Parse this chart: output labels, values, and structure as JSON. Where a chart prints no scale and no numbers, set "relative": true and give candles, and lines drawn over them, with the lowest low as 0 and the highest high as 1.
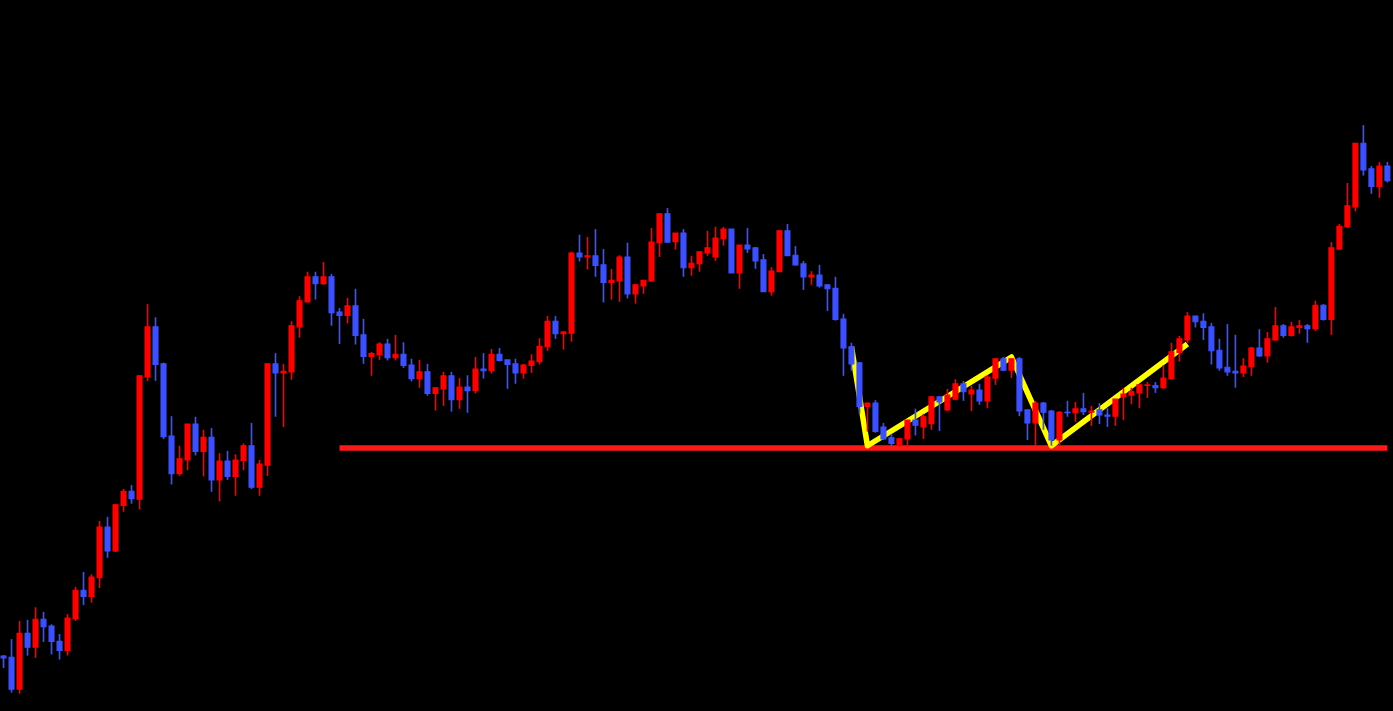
{
  "chart_data": {
    "type": "candlestick",
    "relative": true,
    "categories": [
      null,
      null,
      null,
      null,
      null,
      null,
      null,
      null,
      null,
      null,
      null,
      null,
      null,
      null,
      null,
      null,
      null,
      null,
      null,
      null,
      null,
      null,
      null,
      null,
      null,
      null,
      null,
      null,
      null,
      null,
      null,
      null,
      null,
      null,
      null,
      null,
      null,
      null,
      null,
      null,
      null,
      null,
      null,
      null,
      null,
      null,
      null,
      null,
      null,
      null,
      null,
      null,
      null,
      null,
      null,
      null,
      null,
      null,
      null,
      null,
      null,
      null,
      null,
      null,
      null,
      null,
      null,
      null,
      null,
      null,
      null,
      null,
      null,
      null,
      null,
      null,
      null,
      null,
      null,
      null,
      null,
      null,
      null,
      null,
      null,
      null,
      null,
      null,
      null,
      null,
      null,
      null,
      null,
      null,
      null,
      null,
      null,
      null,
      null,
      null,
      null,
      null,
      null,
      null,
      null,
      null,
      null,
      null,
      null,
      null,
      null,
      null,
      null,
      null,
      null,
      null,
      null,
      null,
      null,
      null,
      null,
      null,
      null,
      null,
      null,
      null,
      null,
      null,
      null,
      null,
      null,
      null,
      null,
      null,
      null,
      null,
      null,
      null,
      null,
      null,
      null,
      null,
      null,
      null,
      null,
      null,
      null,
      null,
      null,
      null,
      null,
      null,
      null,
      null,
      null,
      null,
      null,
      null,
      null,
      null,
      null,
      null,
      null,
      null,
      null,
      null,
      null,
      null,
      null,
      null,
      null,
      null,
      null,
      null
    ],
    "ohlc": [
      [
        0.066,
        0.068,
        0.045,
        0.063
      ],
      [
        0.064,
        0.096,
        0.002,
        0.008
      ],
      [
        0.008,
        0.128,
        0,
        0.106
      ],
      [
        0.106,
        0.13,
        0.067,
        0.082
      ],
      [
        0.082,
        0.152,
        0.063,
        0.131
      ],
      [
        0.131,
        0.144,
        0.091,
        0.118
      ],
      [
        0.119,
        0.122,
        0.069,
        0.092
      ],
      [
        0.092,
        0.105,
        0.06,
        0.076
      ],
      [
        0.076,
        0.14,
        0.067,
        0.133
      ],
      [
        0.132,
        0.188,
        0.128,
        0.182
      ],
      [
        0.182,
        0.214,
        0.156,
        0.171
      ],
      [
        0.171,
        0.21,
        0.16,
        0.205
      ],
      [
        0.204,
        0.304,
        0.186,
        0.293
      ],
      [
        0.293,
        0.311,
        0.239,
        0.251
      ],
      [
        0.251,
        0.334,
        0.249,
        0.332
      ],
      [
        0.331,
        0.36,
        0.32,
        0.356
      ],
      [
        0.356,
        0.367,
        0.334,
        0.343
      ],
      [
        0.342,
        0.559,
        0.324,
        0.559
      ],
      [
        0.557,
        0.685,
        0.55,
        0.645
      ],
      [
        0.645,
        0.662,
        0.55,
        0.579
      ],
      [
        0.58,
        0.582,
        0.448,
        0.452
      ],
      [
        0.453,
        0.488,
        0.368,
        0.387
      ],
      [
        0.387,
        0.436,
        0.383,
        0.413
      ],
      [
        0.411,
        0.474,
        0.393,
        0.474
      ],
      [
        0.474,
        0.487,
        0.419,
        0.426
      ],
      [
        0.426,
        0.464,
        0.382,
        0.451
      ],
      [
        0.451,
        0.467,
        0.355,
        0.376
      ],
      [
        0.376,
        0.423,
        0.338,
        0.409
      ],
      [
        0.409,
        0.427,
        0.376,
        0.382
      ],
      [
        0.382,
        0.421,
        0.348,
        0.411
      ],
      [
        0.41,
        0.44,
        0.393,
        0.436
      ],
      [
        0.436,
        0.476,
        0.36,
        0.363
      ],
      [
        0.363,
        0.411,
        0.348,
        0.404
      ],
      [
        0.402,
        0.58,
        0.383,
        0.58
      ],
      [
        0.58,
        0.599,
        0.487,
        0.564
      ],
      [
        0.564,
        0.58,
        0.469,
        0.567
      ],
      [
        0.566,
        0.655,
        0.552,
        0.647
      ],
      [
        0.645,
        0.699,
        0.626,
        0.691
      ],
      [
        0.689,
        0.742,
        0.689,
        0.733
      ],
      [
        0.733,
        0.742,
        0.693,
        0.721
      ],
      [
        0.721,
        0.759,
        0.719,
        0.733
      ],
      [
        0.733,
        0.738,
        0.647,
        0.67
      ],
      [
        0.671,
        0.678,
        0.615,
        0.665
      ],
      [
        0.665,
        0.696,
        0.651,
        0.682
      ],
      [
        0.682,
        0.712,
        0.614,
        0.63
      ],
      [
        0.631,
        0.659,
        0.58,
        0.593
      ],
      [
        0.593,
        0.601,
        0.559,
        0.598
      ],
      [
        0.596,
        0.618,
        0.587,
        0.615
      ],
      [
        0.615,
        0.624,
        0.586,
        0.591
      ],
      [
        0.591,
        0.631,
        0.586,
        0.597
      ],
      [
        0.597,
        0.618,
        0.573,
        0.577
      ],
      [
        0.578,
        0.589,
        0.549,
        0.554
      ],
      [
        0.554,
        0.587,
        0.538,
        0.566
      ],
      [
        0.566,
        0.58,
        0.524,
        0.528
      ],
      [
        0.528,
        0.539,
        0.498,
        0.538
      ],
      [
        0.536,
        0.566,
        0.506,
        0.559
      ],
      [
        0.559,
        0.566,
        0.496,
        0.517
      ],
      [
        0.517,
        0.555,
        0.501,
        0.539
      ],
      [
        0.539,
        0.56,
        0.494,
        0.533
      ],
      [
        0.533,
        0.592,
        0.528,
        0.571
      ],
      [
        0.571,
        0.599,
        0.554,
        0.568
      ],
      [
        0.568,
        0.606,
        0.563,
        0.597
      ],
      [
        0.597,
        0.608,
        0.584,
        0.586
      ],
      [
        0.587,
        0.587,
        0.536,
        0.579
      ],
      [
        0.58,
        0.589,
        0.545,
        0.564
      ],
      [
        0.564,
        0.58,
        0.554,
        0.578
      ],
      [
        0.577,
        0.597,
        0.564,
        0.585
      ],
      [
        0.584,
        0.625,
        0.579,
        0.611
      ],
      [
        0.61,
        0.664,
        0.603,
        0.655
      ],
      [
        0.655,
        0.664,
        0.624,
        0.633
      ],
      [
        0.633,
        0.638,
        0.605,
        0.636
      ],
      [
        0.634,
        0.777,
        0.619,
        0.775
      ],
      [
        0.775,
        0.807,
        0.76,
        0.768
      ],
      [
        0.768,
        0.803,
        0.746,
        0.77
      ],
      [
        0.77,
        0.817,
        0.733,
        0.753
      ],
      [
        0.754,
        0.782,
        0.688,
        0.723
      ],
      [
        0.723,
        0.747,
        0.693,
        0.727
      ],
      [
        0.726,
        0.771,
        0.689,
        0.768
      ],
      [
        0.768,
        0.793,
        0.695,
        0.703
      ],
      [
        0.703,
        0.72,
        0.686,
        0.719
      ],
      [
        0.717,
        0.727,
        0.703,
        0.727
      ],
      [
        0.726,
        0.819,
        0.724,
        0.794
      ],
      [
        0.793,
        0.844,
        0.768,
        0.844
      ],
      [
        0.844,
        0.854,
        0.793,
        0.794
      ],
      [
        0.795,
        0.81,
        0.781,
        0.81
      ],
      [
        0.81,
        0.817,
        0.733,
        0.749
      ],
      [
        0.749,
        0.77,
        0.735,
        0.757
      ],
      [
        0.756,
        0.777,
        0.742,
        0.777
      ],
      [
        0.775,
        0.814,
        0.77,
        0.784
      ],
      [
        0.768,
        0.821,
        0.761,
        0.801
      ],
      [
        0.8,
        0.821,
        0.788,
        0.817
      ],
      [
        0.817,
        0.817,
        0.74,
        0.74
      ],
      [
        0.74,
        0.789,
        0.712,
        0.789
      ],
      [
        0.789,
        0.819,
        0.775,
        0.782
      ],
      [
        0.784,
        0.785,
        0.747,
        0.761
      ],
      [
        0.763,
        0.773,
        0.707,
        0.707
      ],
      [
        0.707,
        0.75,
        0.7,
        0.743
      ],
      [
        0.742,
        0.815,
        0.742,
        0.814
      ],
      [
        0.814,
        0.826,
        0.77,
        0.77
      ],
      [
        0.771,
        0.787,
        0.753,
        0.754
      ],
      [
        0.756,
        0.761,
        0.71,
        0.733
      ],
      [
        0.733,
        0.743,
        0.719,
        0.736
      ],
      [
        0.736,
        0.754,
        0.714,
        0.717
      ],
      [
        0.719,
        0.719,
        0.673,
        0.712
      ],
      [
        0.713,
        0.733,
        0.656,
        0.658
      ],
      [
        0.659,
        0.668,
        0.559,
        0.608
      ],
      [
        0.61,
        0.617,
        0.568,
        0.58
      ],
      [
        0.582,
        0.582,
        0.492,
        0.505
      ],
      [
        0.505,
        0.511,
        0.461,
        0.511
      ],
      [
        0.511,
        0.516,
        0.459,
        0.461
      ],
      [
        0.469,
        0.476,
        0.446,
        0.448
      ],
      [
        0.45,
        0.457,
        0.436,
        0.44
      ],
      [
        0.437,
        0.45,
        0.434,
        0.448
      ],
      [
        0.448,
        0.481,
        0.434,
        0.481
      ],
      [
        0.481,
        0.501,
        0.454,
        0.472
      ],
      [
        0.469,
        0.492,
        0.448,
        0.487
      ],
      [
        0.475,
        0.523,
        0.464,
        0.522
      ],
      [
        0.522,
        0.523,
        0.462,
        0.513
      ],
      [
        0.499,
        0.536,
        0.497,
        0.525
      ],
      [
        0.518,
        0.553,
        0.516,
        0.545
      ],
      [
        0.545,
        0.55,
        0.515,
        0.531
      ],
      [
        0.527,
        0.541,
        0.497,
        0.534
      ],
      [
        0.534,
        0.545,
        0.508,
        0.515
      ],
      [
        0.515,
        0.56,
        0.502,
        0.557
      ],
      [
        0.555,
        0.59,
        0.543,
        0.589
      ],
      [
        0.589,
        0.592,
        0.567,
        0.569
      ],
      [
        0.569,
        0.59,
        0.555,
        0.589
      ],
      [
        0.589,
        0.592,
        0.488,
        0.497
      ],
      [
        0.499,
        0.499,
        0.446,
        0.476
      ],
      [
        0.476,
        0.515,
        0.436,
        0.511
      ],
      [
        0.511,
        0.513,
        0.464,
        0.495
      ],
      [
        0.497,
        0.499,
        0.436,
        0.446
      ],
      [
        0.446,
        0.497,
        0.436,
        0.495
      ],
      [
        0.495,
        0.515,
        0.487,
        0.494
      ],
      [
        0.494,
        0.513,
        0.478,
        0.501
      ],
      [
        0.501,
        0.529,
        0.49,
        0.496
      ],
      [
        0.495,
        0.506,
        0.471,
        0.497
      ],
      [
        0.499,
        0.511,
        0.474,
        0.49
      ],
      [
        0.49,
        0.502,
        0.469,
        0.488
      ],
      [
        0.488,
        0.518,
        0.471,
        0.518
      ],
      [
        0.522,
        0.538,
        0.481,
        0.527
      ],
      [
        0.525,
        0.538,
        0.509,
        0.531
      ],
      [
        0.529,
        0.543,
        0.502,
        0.543
      ],
      [
        0.542,
        0.548,
        0.52,
        0.543
      ],
      [
        0.542,
        0.548,
        0.529,
        0.538
      ],
      [
        0.538,
        0.578,
        0.536,
        0.555
      ],
      [
        0.554,
        0.617,
        0.552,
        0.601
      ],
      [
        0.6,
        0.629,
        0.584,
        0.624
      ],
      [
        0.622,
        0.671,
        0.617,
        0.664
      ],
      [
        0.664,
        0.664,
        0.644,
        0.654
      ],
      [
        0.655,
        0.669,
        0.622,
        0.644
      ],
      [
        0.645,
        0.652,
        0.579,
        0.603
      ],
      [
        0.604,
        0.624,
        0.568,
        0.573
      ],
      [
        0.574,
        0.65,
        0.559,
        0.566
      ],
      [
        0.567,
        0.631,
        0.538,
        0.564
      ],
      [
        0.564,
        0.59,
        0.557,
        0.576
      ],
      [
        0.575,
        0.61,
        0.559,
        0.608
      ],
      [
        0.608,
        0.641,
        0.592,
        0.594
      ],
      [
        0.594,
        0.636,
        0.582,
        0.624
      ],
      [
        0.622,
        0.68,
        0.621,
        0.647
      ],
      [
        0.647,
        0.65,
        0.626,
        0.63
      ],
      [
        0.63,
        0.654,
        0.628,
        0.645
      ],
      [
        0.644,
        0.657,
        0.633,
        0.647
      ],
      [
        0.647,
        0.65,
        0.617,
        0.642
      ],
      [
        0.642,
        0.691,
        0.638,
        0.683
      ],
      [
        0.683,
        0.685,
        0.656,
        0.658
      ],
      [
        0.658,
        0.794,
        0.631,
        0.784
      ],
      [
        0.782,
        0.826,
        0.78,
        0.822
      ],
      [
        0.821,
        0.898,
        0.819,
        0.858
      ],
      [
        0.856,
        0.968,
        0.848,
        0.968
      ],
      [
        0.968,
        1.0,
        0.911,
        0.921
      ],
      [
        0.923,
        0.928,
        0.879,
        0.892
      ],
      [
        0.892,
        0.935,
        0.872,
        0.928
      ],
      [
        0.928,
        0.935,
        0.899,
        0.902
      ]
    ],
    "colors": [
      "#3c50ff",
      "#3c50ff",
      "#ff0000",
      "#3c50ff",
      "#ff0000",
      "#3c50ff",
      "#3c50ff",
      "#3c50ff",
      "#ff0000",
      "#ff0000",
      "#3c50ff",
      "#ff0000",
      "#ff0000",
      "#3c50ff",
      "#ff0000",
      "#ff0000",
      "#3c50ff",
      "#ff0000",
      "#ff0000",
      "#3c50ff",
      "#3c50ff",
      "#3c50ff",
      "#ff0000",
      "#ff0000",
      "#3c50ff",
      "#ff0000",
      "#3c50ff",
      "#ff0000",
      "#3c50ff",
      "#ff0000",
      "#ff0000",
      "#3c50ff",
      "#ff0000",
      "#ff0000",
      "#3c50ff",
      "#ff0000",
      "#ff0000",
      "#ff0000",
      "#ff0000",
      "#3c50ff",
      "#ff0000",
      "#3c50ff",
      "#3c50ff",
      "#ff0000",
      "#3c50ff",
      "#3c50ff",
      "#ff0000",
      "#ff0000",
      "#3c50ff",
      "#ff0000",
      "#3c50ff",
      "#3c50ff",
      "#ff0000",
      "#3c50ff",
      "#ff0000",
      "#ff0000",
      "#3c50ff",
      "#ff0000",
      "#3c50ff",
      "#ff0000",
      "#3c50ff",
      "#ff0000",
      "#3c50ff",
      "#3c50ff",
      "#3c50ff",
      "#ff0000",
      "#ff0000",
      "#ff0000",
      "#ff0000",
      "#3c50ff",
      "#ff0000",
      "#ff0000",
      "#3c50ff",
      "#ff0000",
      "#3c50ff",
      "#3c50ff",
      "#ff0000",
      "#ff0000",
      "#3c50ff",
      "#ff0000",
      "#ff0000",
      "#ff0000",
      "#ff0000",
      "#3c50ff",
      "#ff0000",
      "#3c50ff",
      "#ff0000",
      "#ff0000",
      "#ff0000",
      "#ff0000",
      "#ff0000",
      "#3c50ff",
      "#ff0000",
      "#3c50ff",
      "#3c50ff",
      "#3c50ff",
      "#ff0000",
      "#ff0000",
      "#3c50ff",
      "#3c50ff",
      "#3c50ff",
      "#ff0000",
      "#3c50ff",
      "#3c50ff",
      "#3c50ff",
      "#3c50ff",
      "#3c50ff",
      "#3c50ff",
      "#ff0000",
      "#3c50ff",
      "#3c50ff",
      "#3c50ff",
      "#ff0000",
      "#ff0000",
      "#3c50ff",
      "#ff0000",
      "#ff0000",
      "#3c50ff",
      "#ff0000",
      "#ff0000",
      "#3c50ff",
      "#ff0000",
      "#3c50ff",
      "#ff0000",
      "#ff0000",
      "#3c50ff",
      "#ff0000",
      "#3c50ff",
      "#3c50ff",
      "#ff0000",
      "#3c50ff",
      "#3c50ff",
      "#ff0000",
      "#3c50ff",
      "#ff0000",
      "#3c50ff",
      "#ff0000",
      "#3c50ff",
      "#3c50ff",
      "#ff0000",
      "#ff0000",
      "#ff0000",
      "#ff0000",
      "#ff0000",
      "#3c50ff",
      "#ff0000",
      "#ff0000",
      "#ff0000",
      "#ff0000",
      "#3c50ff",
      "#3c50ff",
      "#3c50ff",
      "#3c50ff",
      "#3c50ff",
      "#3c50ff",
      "#ff0000",
      "#ff0000",
      "#3c50ff",
      "#ff0000",
      "#ff0000",
      "#3c50ff",
      "#ff0000",
      "#ff0000",
      "#3c50ff",
      "#ff0000",
      "#3c50ff",
      "#ff0000",
      "#ff0000",
      "#ff0000",
      "#ff0000",
      "#3c50ff",
      "#3c50ff",
      "#ff0000",
      "#3c50ff"
    ],
    "series": [
      {
        "type": "line",
        "color": "#ff1a1a",
        "values": [
          null,
          null,
          null,
          null,
          null,
          null,
          null,
          null,
          null,
          null,
          null,
          null,
          null,
          null,
          null,
          null,
          null,
          null,
          null,
          null,
          null,
          null,
          null,
          null,
          null,
          null,
          null,
          null,
          null,
          null,
          null,
          null,
          null,
          null,
          null,
          null,
          null,
          null,
          null,
          null,
          null,
          null,
          0.432,
          null,
          null,
          null,
          null,
          null,
          null,
          null,
          null,
          null,
          null,
          null,
          null,
          null,
          null,
          null,
          null,
          null,
          null,
          null,
          null,
          null,
          null,
          null,
          null,
          null,
          null,
          null,
          null,
          null,
          null,
          null,
          null,
          null,
          null,
          null,
          null,
          null,
          null,
          null,
          null,
          null,
          null,
          null,
          null,
          null,
          null,
          null,
          null,
          null,
          null,
          null,
          null,
          null,
          null,
          null,
          null,
          null,
          null,
          null,
          null,
          null,
          null,
          null,
          null,
          null,
          null,
          null,
          null,
          null,
          null,
          null,
          null,
          null,
          null,
          null,
          null,
          null,
          null,
          null,
          null,
          null,
          null,
          null,
          null,
          null,
          null,
          null,
          null,
          null,
          null,
          null,
          null,
          null,
          null,
          null,
          null,
          null,
          null,
          null,
          null,
          null,
          null,
          null,
          null,
          null,
          null,
          null,
          null,
          null,
          null,
          null,
          null,
          null,
          null,
          null,
          null,
          null,
          null,
          null,
          null,
          null,
          null,
          null,
          null,
          null,
          null,
          null,
          null,
          null,
          null,
          0.432
        ]
      },
      {
        "type": "line",
        "color": "#ffff00",
        "values": [
          null,
          null,
          null,
          null,
          null,
          null,
          null,
          null,
          null,
          null,
          null,
          null,
          null,
          null,
          null,
          null,
          null,
          null,
          null,
          null,
          null,
          null,
          null,
          null,
          null,
          null,
          null,
          null,
          null,
          null,
          null,
          null,
          null,
          null,
          null,
          null,
          null,
          null,
          null,
          null,
          null,
          null,
          null,
          null,
          null,
          null,
          null,
          null,
          null,
          null,
          null,
          null,
          null,
          null,
          null,
          null,
          null,
          null,
          null,
          null,
          null,
          null,
          null,
          null,
          null,
          null,
          null,
          null,
          null,
          null,
          null,
          null,
          null,
          null,
          null,
          null,
          null,
          null,
          null,
          null,
          null,
          null,
          null,
          null,
          null,
          null,
          null,
          null,
          null,
          null,
          null,
          null,
          null,
          null,
          null,
          null,
          null,
          null,
          null,
          null,
          null,
          null,
          null,
          null,
          null,
          null,
          0.61,
          null,
          0.436,
          null,
          null,
          null,
          null,
          null,
          null,
          null,
          null,
          null,
          null,
          null,
          null,
          null,
          null,
          null,
          null,
          null,
          0.592,
          null,
          null,
          null,
          null,
          0.436,
          null,
          null,
          null,
          null,
          null,
          null,
          null,
          null,
          null,
          null,
          null,
          null,
          null,
          null,
          null,
          null,
          0.615,
          null,
          null,
          null,
          null,
          null,
          null,
          null,
          null,
          null,
          null,
          null,
          null,
          null,
          null,
          null,
          null,
          null,
          null,
          null,
          null,
          null,
          null,
          null,
          null,
          null
        ]
      }
    ]
  }
}
